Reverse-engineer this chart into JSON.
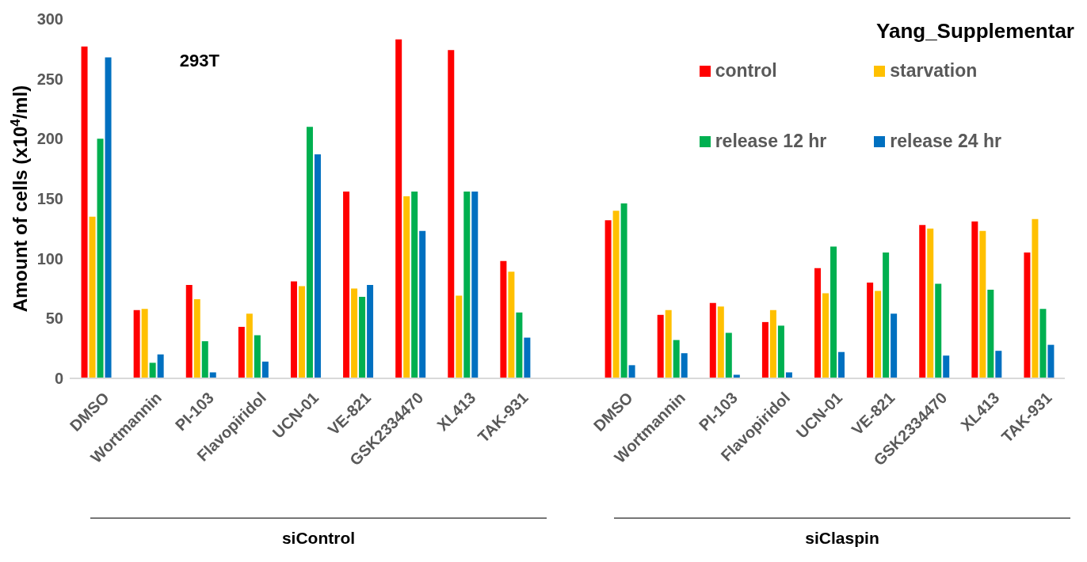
{
  "chart_data": {
    "type": "bar",
    "title": "Yang_Supplementar",
    "ylabel": "Amount of cells (x10$^{4}$/ml)",
    "annotations": [
      "293T",
      "siControl",
      "siClaspin"
    ],
    "categories": [
      "DMSO",
      "Wortmannin",
      "PI-103",
      "Flavopiridol",
      "UCN-01",
      "VE-821",
      "GSK2334470",
      "XL413",
      "TAK-931",
      null,
      "DMSO",
      "Wortmannin",
      "PI-103",
      "Flavopiridol",
      "UCN-01",
      "VE-821",
      "GSK2334470",
      "XL413",
      "TAK-931"
    ],
    "series": [
      {
        "name": "control",
        "color": "#ff0000",
        "values": [
          277,
          57,
          78,
          43,
          81,
          156,
          283,
          274,
          98,
          null,
          132,
          53,
          63,
          47,
          92,
          80,
          128,
          131,
          105
        ]
      },
      {
        "name": "starvation",
        "color": "#ffc000",
        "values": [
          135,
          58,
          66,
          54,
          77,
          75,
          152,
          69,
          89,
          null,
          140,
          57,
          60,
          57,
          71,
          73,
          125,
          123,
          133
        ]
      },
      {
        "name": "release 12 hr",
        "color": "#00b050",
        "values": [
          200,
          13,
          31,
          36,
          210,
          68,
          156,
          156,
          55,
          null,
          146,
          32,
          38,
          44,
          110,
          105,
          79,
          74,
          58
        ]
      },
      {
        "name": "release 24 hr",
        "color": "#0070c0",
        "values": [
          268,
          20,
          5,
          14,
          187,
          78,
          123,
          156,
          34,
          null,
          11,
          21,
          3,
          5,
          22,
          54,
          19,
          23,
          28
        ]
      }
    ],
    "ylim": [
      0,
      300
    ],
    "yticks": [
      0,
      50,
      100,
      150,
      200,
      250,
      300
    ],
    "legend": "top right"
  }
}
